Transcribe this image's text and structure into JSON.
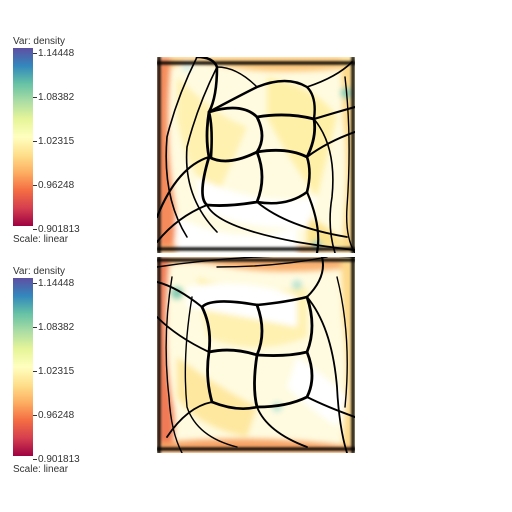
{
  "legends": [
    {
      "title": "Var: density",
      "scale_label": "Scale: linear",
      "ticks": [
        "1.14448",
        "1.08382",
        "1.02315",
        "0.96248",
        "0.901813"
      ],
      "min": 0.901813,
      "max": 1.14448
    },
    {
      "title": "Var: density",
      "scale_label": "Scale: linear",
      "ticks": [
        "1.14448",
        "1.08382",
        "1.02315",
        "0.96248",
        "0.901813"
      ],
      "min": 0.901813,
      "max": 1.14448
    }
  ],
  "colormap": {
    "name": "Spectral",
    "stops": [
      "#5e4fa2",
      "#3288bd",
      "#66c2a5",
      "#abdda4",
      "#e6f598",
      "#ffffbf",
      "#fee08b",
      "#fdae61",
      "#f46d43",
      "#d53e4f",
      "#9e0142"
    ]
  },
  "colors": {
    "edge": "#000000",
    "background": "#ffffff"
  }
}
